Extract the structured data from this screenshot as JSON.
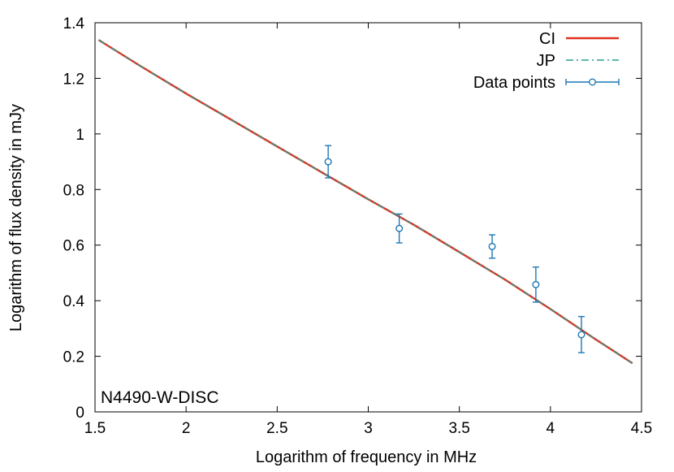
{
  "chart_data": {
    "type": "line",
    "title": "",
    "xlabel": "Logarithm of frequency in MHz",
    "ylabel": "Logarithm of flux density in mJy",
    "xlim": [
      1.5,
      4.5
    ],
    "ylim": [
      0,
      1.4
    ],
    "xticks": [
      1.5,
      2,
      2.5,
      3,
      3.5,
      4,
      4.5
    ],
    "xtick_labels": [
      "1.5",
      "2",
      "2.5",
      "3",
      "3.5",
      "4",
      "4.5"
    ],
    "yticks": [
      0,
      0.2,
      0.4,
      0.6,
      0.8,
      1,
      1.2,
      1.4
    ],
    "ytick_labels": [
      "0",
      "0.2",
      "0.4",
      "0.6",
      "0.8",
      "1",
      "1.2",
      "1.4"
    ],
    "grid": false,
    "legend_position": "top-right",
    "annotation": "N4490-W-DISC",
    "series": [
      {
        "name": "CI",
        "kind": "line",
        "style": "solid",
        "color": "#e0301e",
        "x": [
          1.52,
          1.75,
          2.0,
          2.25,
          2.5,
          2.75,
          3.0,
          3.25,
          3.5,
          3.75,
          4.0,
          4.25,
          4.45
        ],
        "y": [
          1.338,
          1.244,
          1.145,
          1.05,
          0.955,
          0.86,
          0.765,
          0.673,
          0.575,
          0.476,
          0.37,
          0.26,
          0.175
        ]
      },
      {
        "name": "JP",
        "kind": "line",
        "style": "dash-dot",
        "color": "#2a9d8f",
        "x": [
          1.52,
          1.75,
          2.0,
          2.25,
          2.5,
          2.75,
          3.0,
          3.25,
          3.5,
          3.75,
          4.0,
          4.25,
          4.45
        ],
        "y": [
          1.338,
          1.244,
          1.145,
          1.05,
          0.955,
          0.86,
          0.765,
          0.673,
          0.575,
          0.476,
          0.37,
          0.26,
          0.175
        ]
      },
      {
        "name": "Data points",
        "kind": "errorbar",
        "color": "#1f77b4",
        "x": [
          2.78,
          3.17,
          3.68,
          3.92,
          4.17
        ],
        "y": [
          0.9,
          0.66,
          0.595,
          0.458,
          0.278
        ],
        "yerr": [
          0.058,
          0.052,
          0.042,
          0.063,
          0.065
        ]
      }
    ]
  }
}
